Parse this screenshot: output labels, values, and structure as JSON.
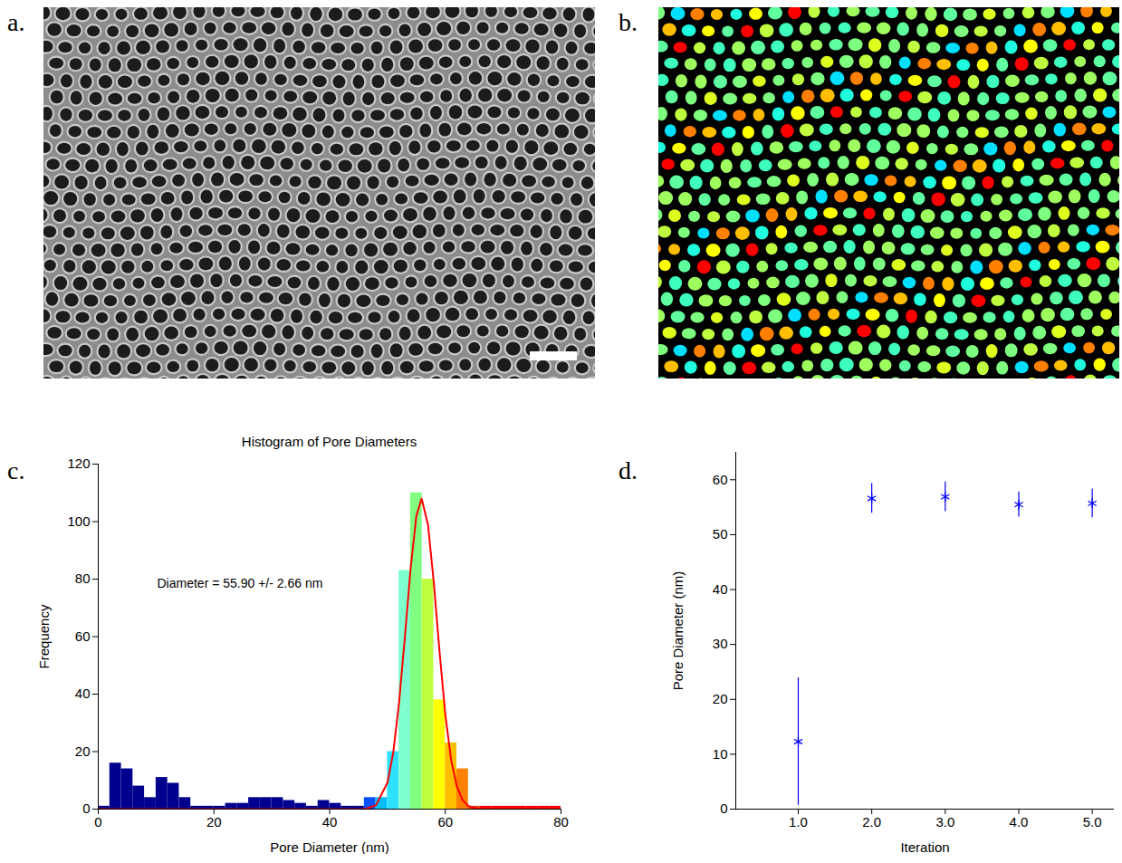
{
  "chart_data": [
    {
      "type": "image",
      "panel_label": "a."
    },
    {
      "type": "image",
      "panel_label": "b."
    },
    {
      "type": "histogram",
      "panel_label": "c.",
      "title": "Histogram of Pore Diameters",
      "x_label": "Pore Diameter (nm)",
      "y_label": "Frequency",
      "bins": [
        0,
        2,
        4,
        6,
        8,
        10,
        12,
        14,
        16,
        18,
        20,
        22,
        24,
        26,
        28,
        30,
        32,
        34,
        36,
        38,
        40,
        42,
        44,
        46,
        48,
        50,
        52,
        54,
        56,
        58,
        60,
        62,
        64,
        66,
        68,
        70,
        72,
        74,
        76,
        78,
        80
      ],
      "counts": [
        1,
        16,
        14,
        8,
        4,
        11,
        9,
        4,
        1,
        1,
        1,
        2,
        2,
        4,
        4,
        4,
        3,
        2,
        1,
        3,
        2,
        1,
        1,
        4,
        4,
        20,
        83,
        110,
        80,
        38,
        23,
        14,
        1,
        1,
        1,
        1,
        1,
        1,
        1,
        1
      ],
      "colors": [
        "#00008f",
        "#00008f",
        "#00008f",
        "#00008f",
        "#00008f",
        "#00008f",
        "#00008f",
        "#00008f",
        "#00008f",
        "#00008f",
        "#00008f",
        "#00008f",
        "#00008f",
        "#00008f",
        "#00008f",
        "#00008f",
        "#00008f",
        "#00008f",
        "#00008f",
        "#00008f",
        "#00008f",
        "#00008f",
        "#00008f",
        "#0050ff",
        "#00bfff",
        "#30e0ff",
        "#7fffd0",
        "#80ff80",
        "#bfff40",
        "#ffff00",
        "#ffbf00",
        "#ff8000",
        "#ff4000",
        "#ff0000",
        "#ff0000",
        "#ff0000",
        "#ff0000",
        "#ff0000",
        "#ff0000",
        "#ff0000"
      ],
      "series": [
        {
          "type": "line",
          "color": "#ff0000",
          "x": [
            0,
            46,
            48,
            50,
            51,
            52,
            53,
            54,
            55,
            55.9,
            57,
            58,
            59,
            60,
            61,
            62,
            63,
            64,
            66,
            80
          ],
          "values": [
            0,
            0,
            1.3,
            9.2,
            19.7,
            36.9,
            59.6,
            83.7,
            102,
            108,
            99,
            79,
            54.8,
            32.9,
            17.2,
            7.8,
            3.1,
            1,
            0,
            0
          ]
        }
      ],
      "annotations": [
        "Diameter = 55.90 +/- 2.66 nm"
      ],
      "xlim": [
        0,
        80
      ],
      "xticks": [
        0,
        20,
        40,
        60,
        80
      ],
      "ylim": [
        0,
        120
      ],
      "yticks": [
        0,
        20,
        40,
        60,
        80,
        100,
        120
      ]
    },
    {
      "type": "scatter",
      "panel_label": "d.",
      "x_label": "Iteration",
      "y_label": "Pore Diameter (nm)",
      "x": [
        1,
        2,
        3,
        4,
        5
      ],
      "values": [
        12.3,
        56.6,
        56.9,
        55.5,
        55.7
      ],
      "error": [
        11.6,
        2.7,
        2.7,
        2.3,
        2.6
      ],
      "color": "#0000ff",
      "marker": "asterisk",
      "xlim": [
        0.15,
        5.3
      ],
      "xticks": [
        1,
        2,
        3,
        4,
        5
      ],
      "ylim": [
        0,
        65
      ],
      "yticks": [
        0,
        10,
        20,
        30,
        40,
        50,
        60
      ]
    }
  ]
}
